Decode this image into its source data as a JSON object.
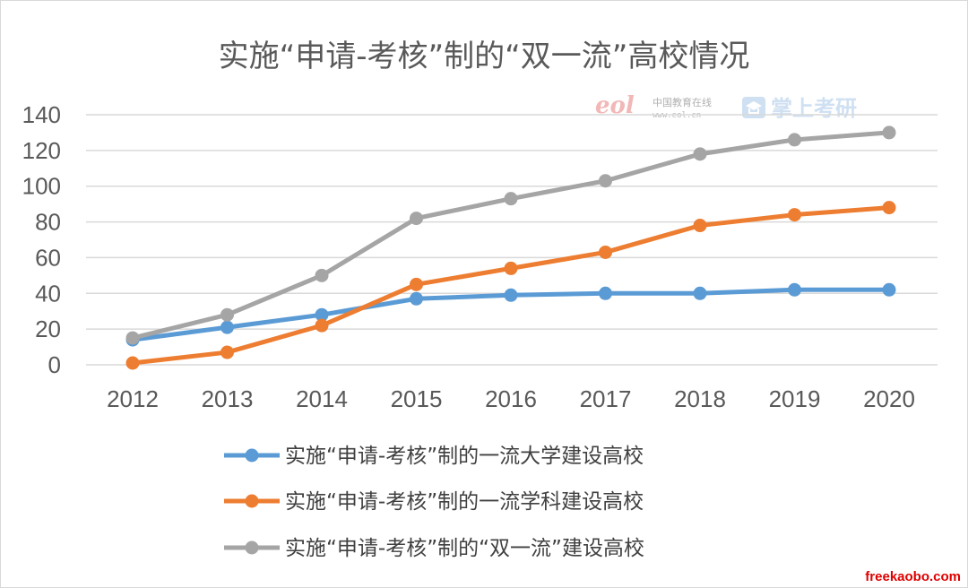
{
  "chart_data": {
    "type": "line",
    "title": "实施“申请-考核”制的“双一流”高校情况",
    "categories": [
      "2012",
      "2013",
      "2014",
      "2015",
      "2016",
      "2017",
      "2018",
      "2019",
      "2020"
    ],
    "ylim": [
      0,
      140
    ],
    "yticks": [
      "0",
      "20",
      "40",
      "60",
      "80",
      "100",
      "120",
      "140"
    ],
    "grid": true,
    "legend_position": "bottom",
    "series": [
      {
        "name": "实施“申请-考核”制的一流大学建设高校",
        "color": "#5b9bd5",
        "values": [
          14,
          21,
          28,
          37,
          39,
          40,
          40,
          42,
          42
        ]
      },
      {
        "name": "实施“申请-考核”制的一流学科建设高校",
        "color": "#ed7d31",
        "values": [
          1,
          7,
          22,
          45,
          54,
          63,
          78,
          84,
          88
        ]
      },
      {
        "name": "实施“申请-考核”制的“双一流”建设高校",
        "color": "#a5a5a5",
        "values": [
          15,
          28,
          50,
          82,
          93,
          103,
          118,
          126,
          130
        ]
      }
    ]
  },
  "watermark": {
    "eol_logo": "eol",
    "eol_cn": "中国教育在线",
    "eol_url": "www.eol.cn",
    "zskw_icon": "graduation-cap-icon",
    "zskw_text": "掌上考研"
  },
  "footer": {
    "site": "freekaobo.com"
  }
}
